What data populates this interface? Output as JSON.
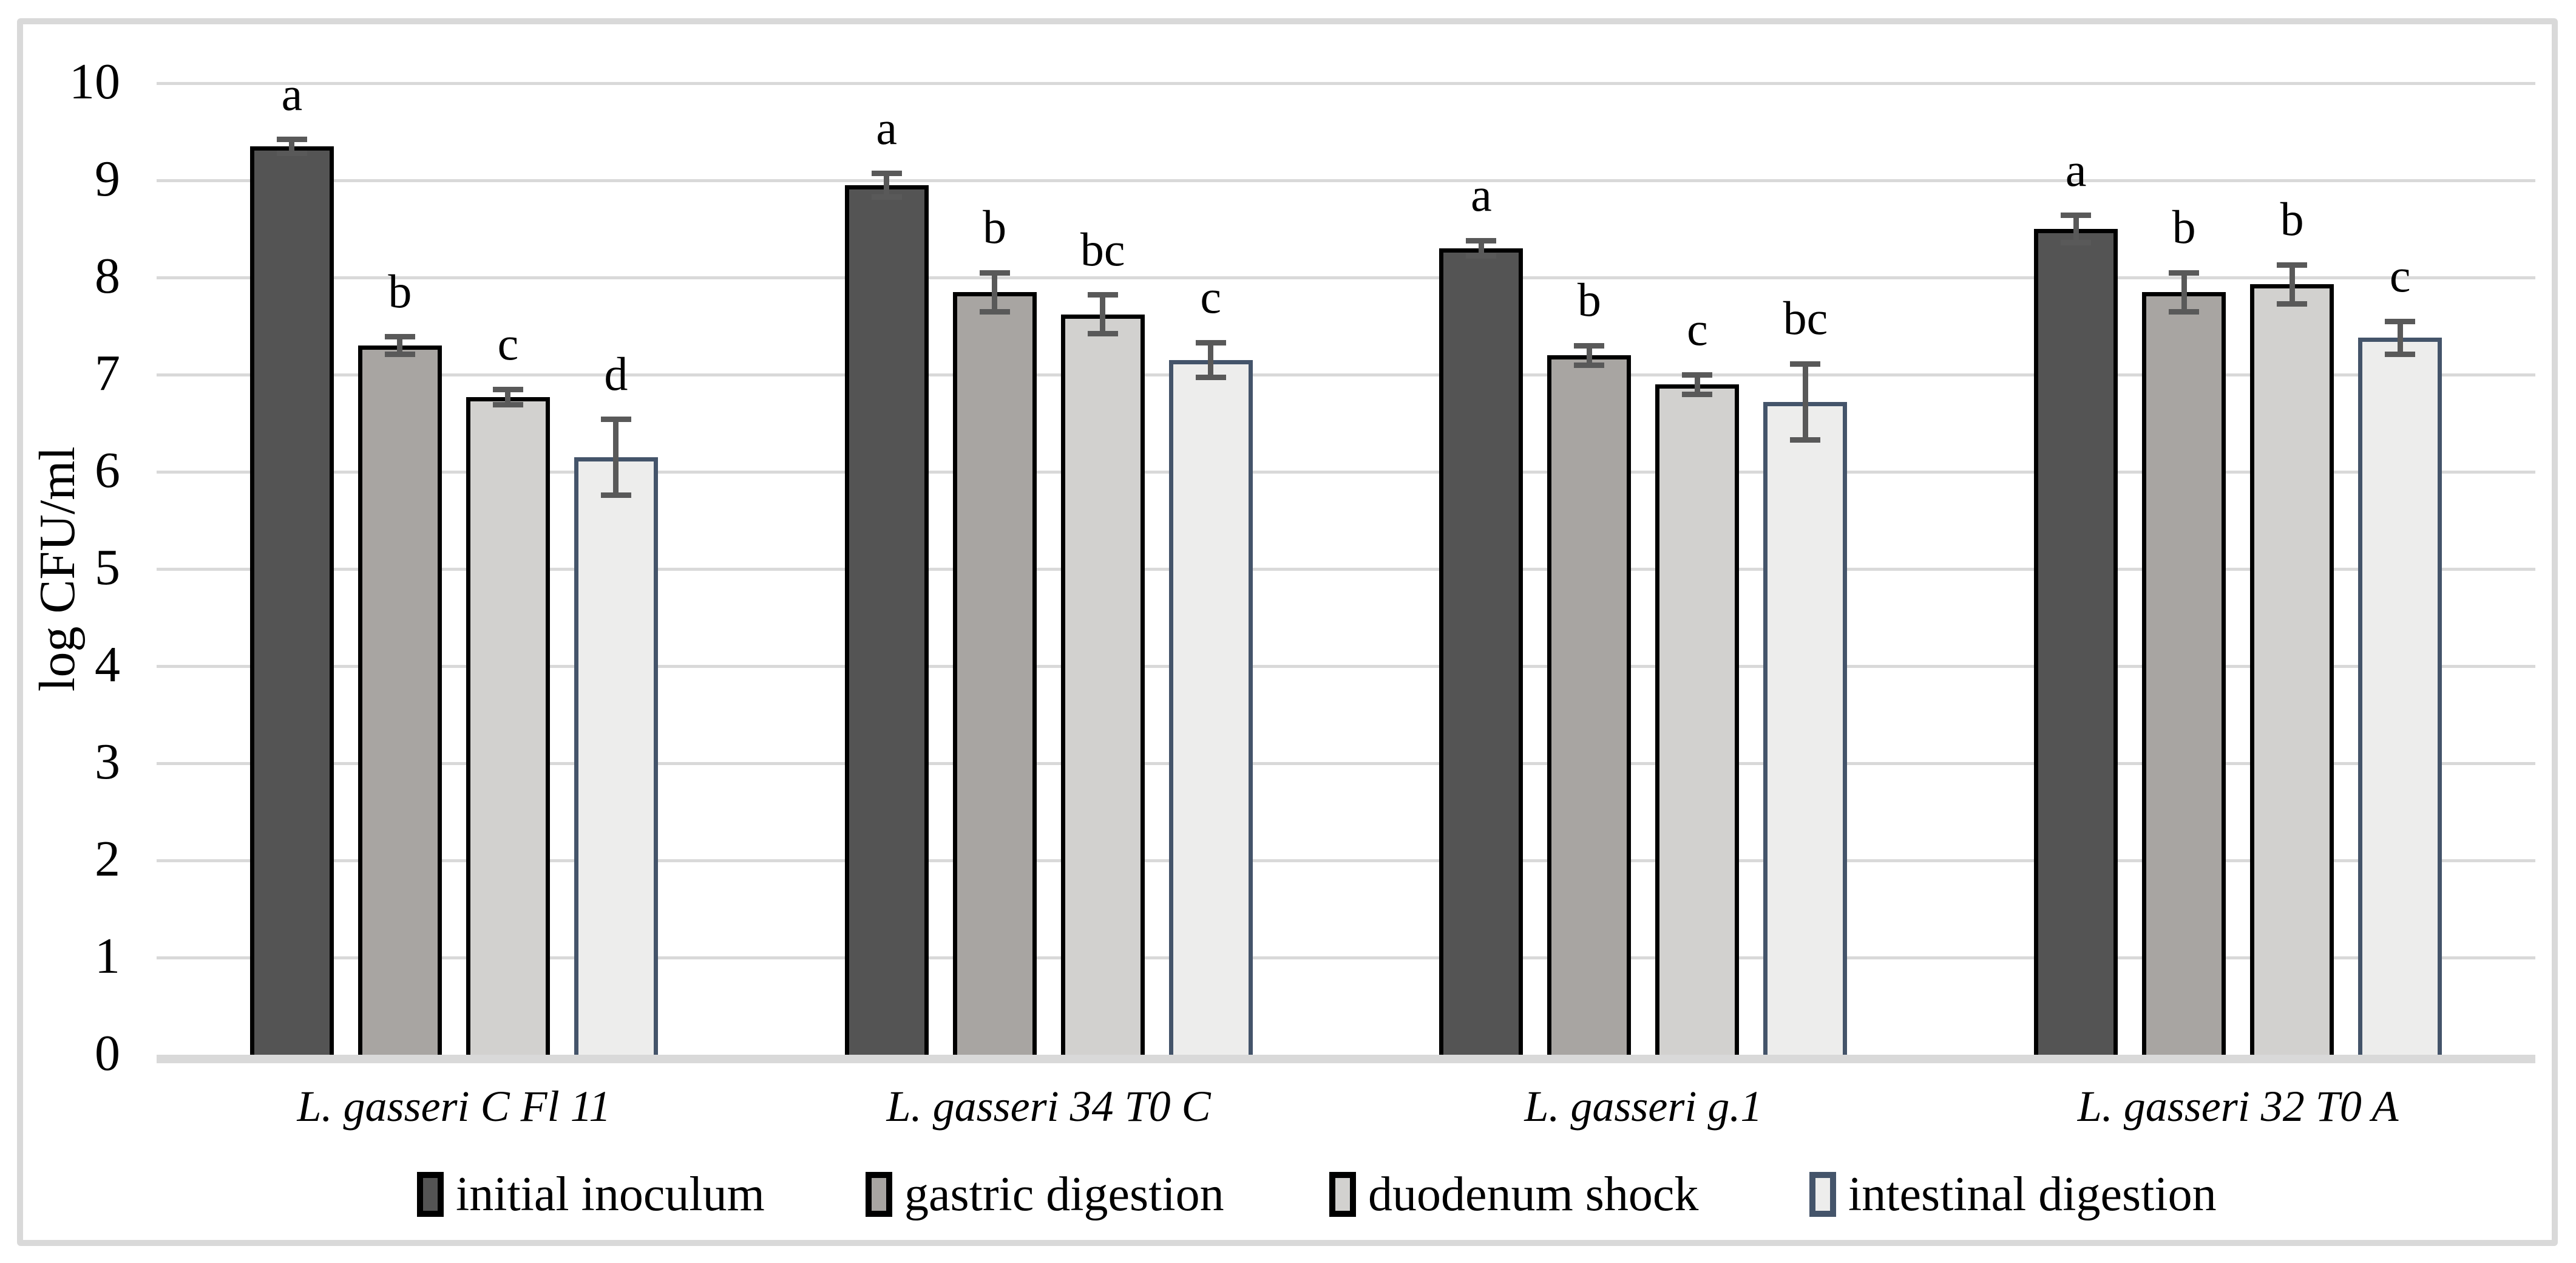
{
  "figure": {
    "background": "#ffffff",
    "frame_color": "#d9d9d9"
  },
  "chart_data": {
    "type": "bar",
    "title": "",
    "xlabel": "",
    "ylabel": "log CFU/ml",
    "ylim": [
      0,
      10
    ],
    "ystep": 1,
    "tick_labels": [
      "0",
      "1",
      "2",
      "3",
      "4",
      "5",
      "6",
      "7",
      "8",
      "9",
      "10"
    ],
    "grid": "horizontal",
    "gridline_color": "#d9d9d9",
    "axis_line_color": "#d9d9d9",
    "error_bar_color": "#595959",
    "legend_position": "bottom",
    "categories": [
      "L. gasseri C Fl 11",
      "L. gasseri 34 T0 C",
      "L. gasseri g.1",
      "L. gasseri 32 T0 A"
    ],
    "series": [
      {
        "name": "initial inoculum",
        "fill": "#545454",
        "border": "#000000",
        "values": [
          9.35,
          8.95,
          8.3,
          8.5
        ],
        "errors": [
          0.07,
          0.12,
          0.08,
          0.14
        ],
        "letters": [
          "a",
          "a",
          "a",
          "a"
        ]
      },
      {
        "name": "gastric digestion",
        "fill": "#a8a5a2",
        "border": "#000000",
        "values": [
          7.3,
          7.85,
          7.2,
          7.85
        ],
        "errors": [
          0.09,
          0.2,
          0.1,
          0.2
        ],
        "letters": [
          "b",
          "b",
          "b",
          "b"
        ]
      },
      {
        "name": "duodenum shock",
        "fill": "#d2d1cf",
        "border": "#000000",
        "values": [
          6.77,
          7.62,
          6.9,
          7.93
        ],
        "errors": [
          0.08,
          0.2,
          0.1,
          0.2
        ],
        "letters": [
          "c",
          "bc",
          "c",
          "b"
        ]
      },
      {
        "name": "intestinal digestion",
        "fill": "#ededec",
        "border": "#44546a",
        "values": [
          6.15,
          7.15,
          6.72,
          7.38
        ],
        "errors": [
          0.39,
          0.18,
          0.39,
          0.17
        ],
        "letters": [
          "d",
          "c",
          "bc",
          "c"
        ]
      }
    ]
  }
}
